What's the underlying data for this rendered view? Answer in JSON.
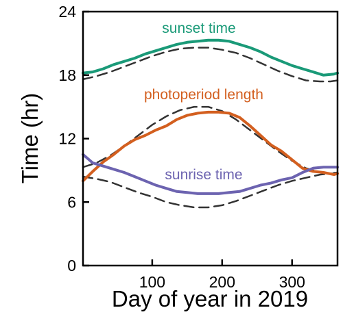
{
  "chart_data": {
    "type": "line",
    "title": "",
    "xlabel": "Day of year in 2019",
    "ylabel": "Time (hr)",
    "xlim": [
      1,
      365
    ],
    "ylim": [
      0,
      24
    ],
    "xticks": [
      100,
      200,
      300
    ],
    "yticks": [
      0,
      6,
      12,
      18,
      24
    ],
    "grid": false,
    "legend": "inline labels",
    "series": [
      {
        "name": "sunset time",
        "color": "#1a9a78",
        "style": "solid",
        "x": [
          1,
          15,
          30,
          45,
          60,
          75,
          90,
          105,
          120,
          135,
          150,
          165,
          180,
          195,
          210,
          225,
          240,
          255,
          270,
          285,
          300,
          315,
          330,
          345,
          360,
          365
        ],
        "y": [
          18.2,
          18.3,
          18.6,
          19.0,
          19.3,
          19.6,
          20.0,
          20.3,
          20.6,
          20.9,
          21.1,
          21.2,
          21.3,
          21.3,
          21.2,
          20.9,
          20.6,
          20.2,
          19.7,
          19.3,
          18.9,
          18.6,
          18.3,
          18.0,
          18.1,
          18.2
        ]
      },
      {
        "name": "photoperiod length",
        "color": "#d35f1f",
        "style": "solid",
        "x": [
          1,
          15,
          30,
          45,
          60,
          75,
          90,
          105,
          120,
          135,
          150,
          165,
          180,
          195,
          210,
          225,
          240,
          255,
          270,
          285,
          300,
          315,
          330,
          345,
          360,
          365
        ],
        "y": [
          8.0,
          8.9,
          9.8,
          10.5,
          11.3,
          11.9,
          12.3,
          12.8,
          13.2,
          13.8,
          14.2,
          14.4,
          14.5,
          14.5,
          14.4,
          14.0,
          13.2,
          12.3,
          11.4,
          10.8,
          10.0,
          9.2,
          8.9,
          8.8,
          8.6,
          8.7
        ]
      },
      {
        "name": "sunrise time",
        "color": "#6c63b0",
        "style": "solid",
        "x": [
          1,
          15,
          30,
          45,
          60,
          75,
          90,
          105,
          120,
          135,
          150,
          165,
          180,
          195,
          210,
          225,
          240,
          255,
          270,
          285,
          300,
          315,
          330,
          345,
          360,
          365
        ],
        "y": [
          10.5,
          9.7,
          9.4,
          9.1,
          8.8,
          8.4,
          8.0,
          7.6,
          7.3,
          7.0,
          6.9,
          6.8,
          6.8,
          6.8,
          6.9,
          7.0,
          7.3,
          7.6,
          7.8,
          8.1,
          8.3,
          8.8,
          9.2,
          9.3,
          9.3,
          9.3
        ]
      },
      {
        "color": "#333333",
        "style": "dashed",
        "x": [
          1,
          20,
          40,
          60,
          80,
          100,
          120,
          140,
          160,
          172,
          180,
          200,
          220,
          240,
          260,
          280,
          300,
          320,
          340,
          355,
          365
        ],
        "y": [
          17.6,
          17.9,
          18.3,
          18.8,
          19.3,
          19.8,
          20.2,
          20.5,
          20.6,
          20.6,
          20.6,
          20.4,
          20.1,
          19.6,
          19.0,
          18.4,
          17.9,
          17.5,
          17.4,
          17.4,
          17.5
        ]
      },
      {
        "color": "#333333",
        "style": "dashed",
        "x": [
          1,
          20,
          40,
          60,
          80,
          100,
          120,
          140,
          160,
          172,
          180,
          200,
          220,
          240,
          260,
          280,
          300,
          320,
          340,
          355,
          365
        ],
        "y": [
          9.3,
          9.7,
          10.4,
          11.3,
          12.3,
          13.3,
          14.1,
          14.7,
          15.0,
          15.0,
          15.0,
          14.6,
          13.8,
          12.8,
          11.8,
          10.8,
          9.9,
          9.2,
          8.8,
          8.7,
          8.8
        ]
      },
      {
        "color": "#333333",
        "style": "dashed",
        "x": [
          1,
          20,
          40,
          60,
          80,
          100,
          120,
          140,
          160,
          172,
          180,
          200,
          220,
          240,
          260,
          280,
          300,
          320,
          340,
          355,
          365
        ],
        "y": [
          8.4,
          8.2,
          7.9,
          7.4,
          6.9,
          6.5,
          6.0,
          5.7,
          5.5,
          5.5,
          5.5,
          5.7,
          6.1,
          6.6,
          7.1,
          7.6,
          8.0,
          8.3,
          8.6,
          8.7,
          8.7
        ]
      }
    ]
  }
}
